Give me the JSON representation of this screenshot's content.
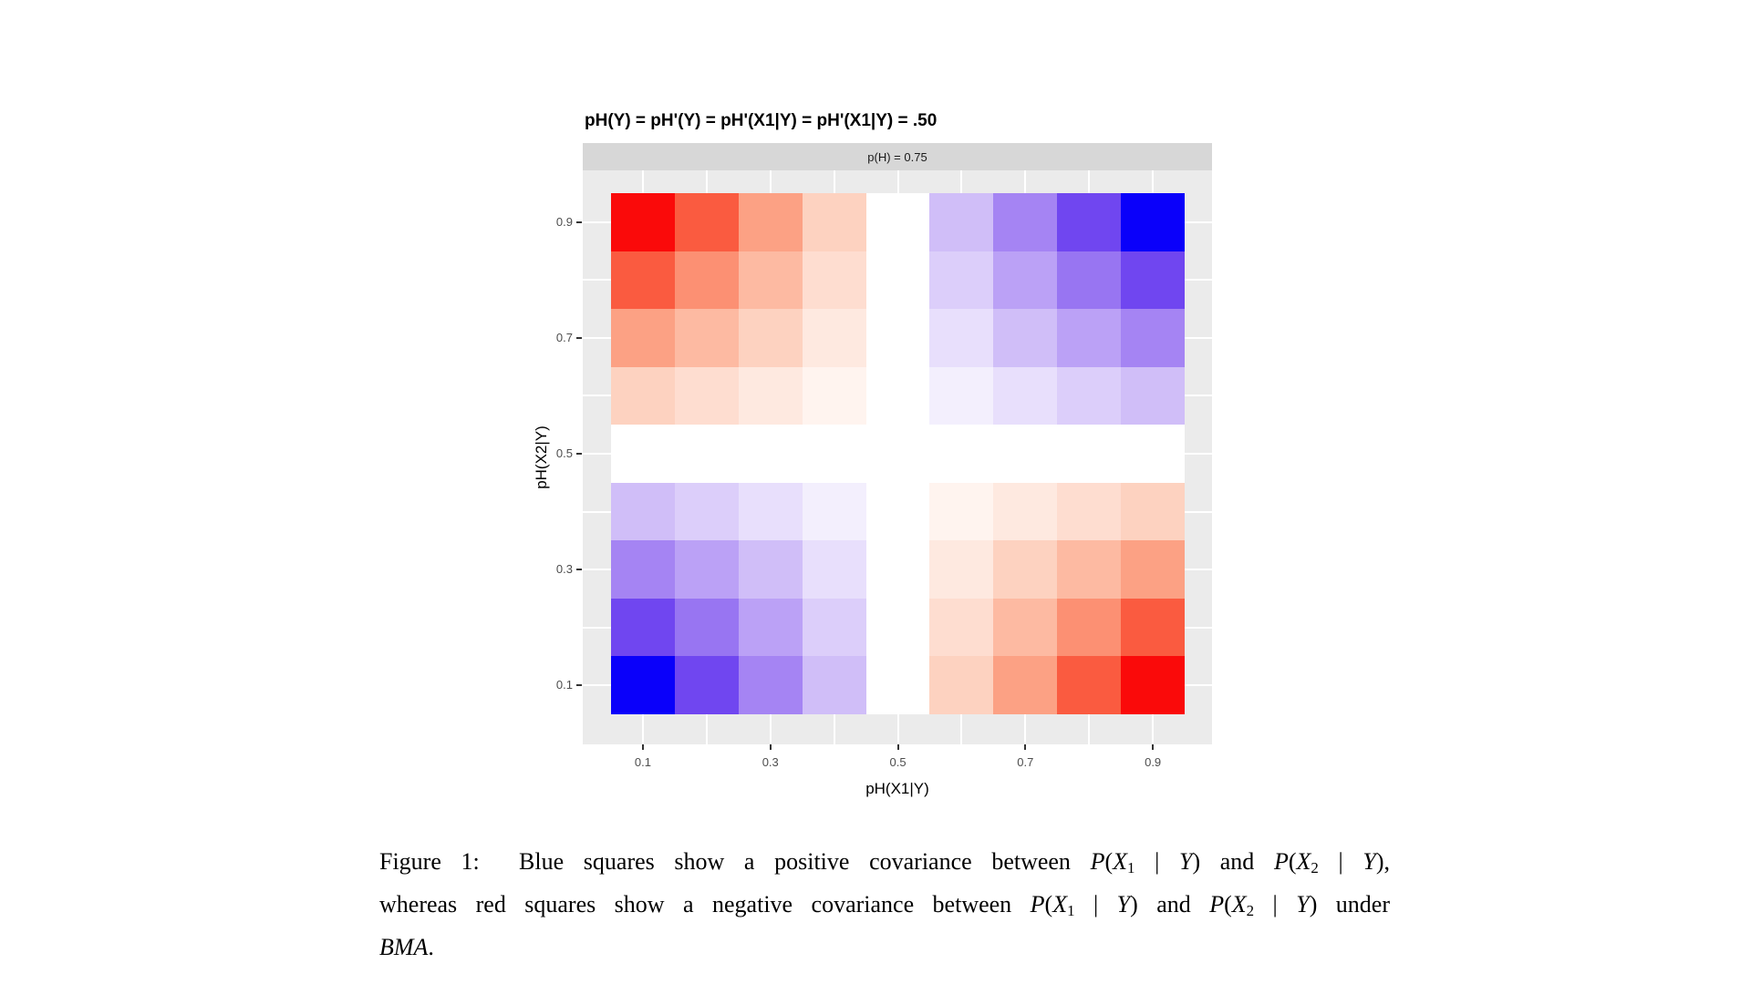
{
  "figure": {
    "colors": {
      "panel_bg": "#EBEBEB",
      "strip_bg": "#D7D7D7",
      "grid": "#FFFFFF",
      "tick": "#333333",
      "tick_label": "#4D4D4D",
      "title_text": "#000000",
      "strip_text": "#1A1A1A"
    }
  },
  "chart_data": {
    "type": "heatmap",
    "title": "pH(Y) = pH'(Y) = pH'(X1|Y) = pH'(X1|Y) = .50",
    "facet_label": "p(H) = 0.75",
    "xlabel": "pH(X1|Y)",
    "ylabel": "pH(X2|Y)",
    "x_values": [
      0.1,
      0.2,
      0.3,
      0.4,
      0.5,
      0.6,
      0.7,
      0.8,
      0.9
    ],
    "y_values": [
      0.1,
      0.2,
      0.3,
      0.4,
      0.5,
      0.6,
      0.7,
      0.8,
      0.9
    ],
    "x_ticks": [
      0.1,
      0.3,
      0.5,
      0.7,
      0.9
    ],
    "y_ticks": [
      0.9,
      0.7,
      0.5,
      0.3,
      0.1
    ],
    "xlim": [
      0,
      1
    ],
    "ylim": [
      0,
      1
    ],
    "grid": true,
    "legend": "none",
    "value_meaning": "covariance between P(X1|Y) and P(X2|Y); blue = positive, red = negative, white = zero",
    "rows_top_to_bottom": [
      {
        "y": 0.9,
        "values": [
          -0.16,
          -0.12,
          -0.08,
          -0.04,
          0.0,
          0.04,
          0.08,
          0.12,
          0.16
        ]
      },
      {
        "y": 0.8,
        "values": [
          -0.12,
          -0.09,
          -0.06,
          -0.03,
          0.0,
          0.03,
          0.06,
          0.09,
          0.12
        ]
      },
      {
        "y": 0.7,
        "values": [
          -0.08,
          -0.06,
          -0.04,
          -0.02,
          0.0,
          0.02,
          0.04,
          0.06,
          0.08
        ]
      },
      {
        "y": 0.6,
        "values": [
          -0.04,
          -0.03,
          -0.02,
          -0.01,
          0.0,
          0.01,
          0.02,
          0.03,
          0.04
        ]
      },
      {
        "y": 0.5,
        "values": [
          0.0,
          0.0,
          0.0,
          0.0,
          0.0,
          0.0,
          0.0,
          0.0,
          0.0
        ]
      },
      {
        "y": 0.4,
        "values": [
          0.04,
          0.03,
          0.02,
          0.01,
          0.0,
          -0.01,
          -0.02,
          -0.03,
          -0.04
        ]
      },
      {
        "y": 0.3,
        "values": [
          0.08,
          0.06,
          0.04,
          0.02,
          0.0,
          -0.02,
          -0.04,
          -0.06,
          -0.08
        ]
      },
      {
        "y": 0.2,
        "values": [
          0.12,
          0.09,
          0.06,
          0.03,
          0.0,
          -0.03,
          -0.06,
          -0.09,
          -0.12
        ]
      },
      {
        "y": 0.1,
        "values": [
          0.16,
          0.12,
          0.08,
          0.04,
          0.0,
          -0.04,
          -0.08,
          -0.12,
          -0.16
        ]
      }
    ],
    "colorscale": {
      "max_abs": 0.16,
      "positive_stops": [
        [
          0,
          "#FFFFFF"
        ],
        [
          0.25,
          "#D0BEF8"
        ],
        [
          0.5,
          "#A584F3"
        ],
        [
          0.75,
          "#7046F0"
        ],
        [
          1,
          "#0A00FA"
        ]
      ],
      "negative_stops": [
        [
          0,
          "#FFFFFF"
        ],
        [
          0.25,
          "#FDD2C0"
        ],
        [
          0.5,
          "#FCA184"
        ],
        [
          0.75,
          "#FA5B40"
        ],
        [
          1,
          "#FA0A0A"
        ]
      ]
    }
  },
  "caption": {
    "lines": [
      {
        "justify": true,
        "runs": [
          {
            "t": "Figure 1:  Blue squares show a positive covariance between ",
            "s": "r"
          },
          {
            "t": "P",
            "s": "i"
          },
          {
            "t": "(",
            "s": "r"
          },
          {
            "t": "X",
            "s": "i"
          },
          {
            "t": "1",
            "s": "sub"
          },
          {
            "t": " | ",
            "s": "r"
          },
          {
            "t": "Y",
            "s": "i"
          },
          {
            "t": ") and ",
            "s": "r"
          },
          {
            "t": "P",
            "s": "i"
          },
          {
            "t": "(",
            "s": "r"
          },
          {
            "t": "X",
            "s": "i"
          },
          {
            "t": "2",
            "s": "sub"
          },
          {
            "t": " | ",
            "s": "r"
          },
          {
            "t": "Y",
            "s": "i"
          },
          {
            "t": "),",
            "s": "r"
          }
        ]
      },
      {
        "justify": true,
        "runs": [
          {
            "t": "whereas red squares show a negative covariance between ",
            "s": "r"
          },
          {
            "t": "P",
            "s": "i"
          },
          {
            "t": "(",
            "s": "r"
          },
          {
            "t": "X",
            "s": "i"
          },
          {
            "t": "1",
            "s": "sub"
          },
          {
            "t": " | ",
            "s": "r"
          },
          {
            "t": "Y",
            "s": "i"
          },
          {
            "t": ") and ",
            "s": "r"
          },
          {
            "t": "P",
            "s": "i"
          },
          {
            "t": "(",
            "s": "r"
          },
          {
            "t": "X",
            "s": "i"
          },
          {
            "t": "2",
            "s": "sub"
          },
          {
            "t": " | ",
            "s": "r"
          },
          {
            "t": "Y",
            "s": "i"
          },
          {
            "t": ") under",
            "s": "r"
          }
        ]
      },
      {
        "justify": false,
        "runs": [
          {
            "t": "BMA",
            "s": "i"
          },
          {
            "t": ".",
            "s": "r"
          }
        ]
      }
    ]
  }
}
